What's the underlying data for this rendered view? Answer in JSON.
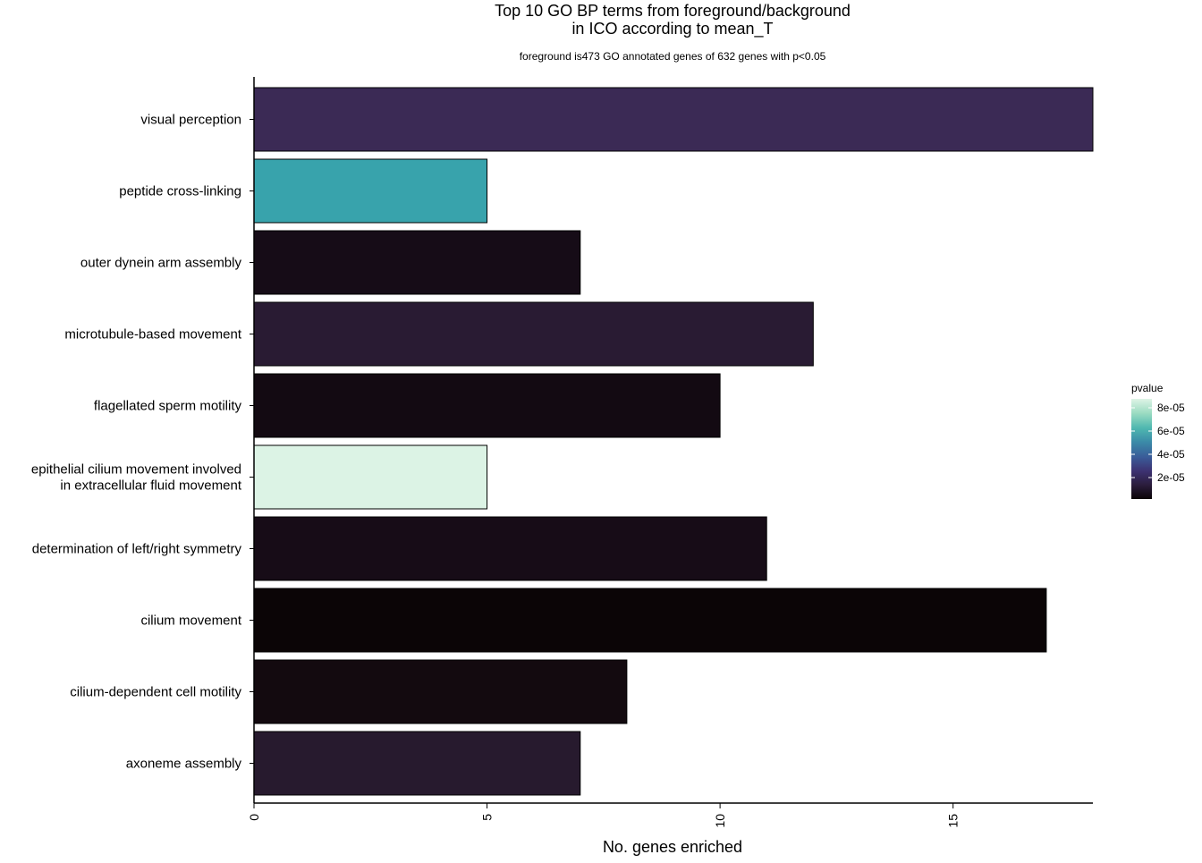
{
  "chart_data": {
    "type": "bar",
    "orientation": "horizontal",
    "title_line1": "Top 10 GO BP terms from foreground/background",
    "title_line2": "in ICO according to mean_T",
    "subtitle": "foreground is473 GO annotated genes of 632 genes with p<0.05",
    "xlabel": "No. genes enriched",
    "ylabel": "",
    "xlim": [
      0,
      18
    ],
    "xticks": [
      0,
      5,
      10,
      15
    ],
    "grid": false,
    "categories": [
      "visual perception",
      "peptide cross-linking",
      "outer dynein arm assembly",
      "microtubule-based movement",
      "flagellated sperm motility",
      "epithelial cilium movement involved\nin extracellular fluid movement",
      "determination of left/right symmetry",
      "cilium movement",
      "cilium-dependent cell motility",
      "axoneme assembly"
    ],
    "values": [
      18,
      5,
      7,
      12,
      10,
      5,
      11,
      17,
      8,
      7
    ],
    "bar_colors": [
      "#3b2a55",
      "#38a3ac",
      "#160c17",
      "#291b33",
      "#130a12",
      "#dcf3e5",
      "#170c17",
      "#0b0506",
      "#130a0f",
      "#271a2e"
    ],
    "legend": {
      "title": "pvalue",
      "placement": "right",
      "ticks": [
        "8e-05",
        "6e-05",
        "4e-05",
        "2e-05"
      ],
      "gradient_colors": [
        "#0b0406",
        "#2b1d3c",
        "#3d3272",
        "#3a5c99",
        "#3b8ba8",
        "#4fb8b0",
        "#9ddcc2",
        "#def4e6"
      ]
    }
  }
}
